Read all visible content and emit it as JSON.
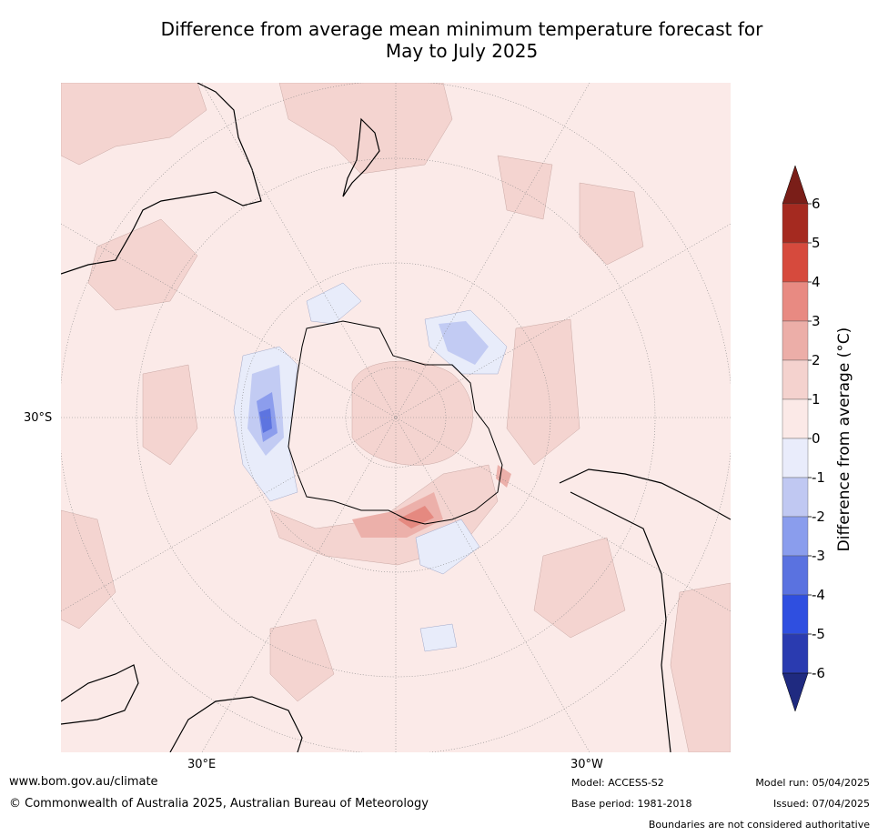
{
  "title_line1": "Difference from average mean minimum temperature forecast for",
  "title_line2": "May to July 2025",
  "map": {
    "lat_label": "30°S",
    "lon_label_east": "30°E",
    "lon_label_west": "30°W",
    "colors": {
      "land_outline": "#000000",
      "ocean_base": "#fbeae8",
      "warm_1_2": "#f4d4d0",
      "warm_2_3": "#ecb0aa",
      "warm_3_4": "#e58980",
      "warm_4_5": "#d94a40",
      "cool_0_1": "#e8ecfa",
      "cool_1_2": "#c2cbf3",
      "cool_2_3": "#8c9ded",
      "cool_3_4": "#5d74e0",
      "graticule": "#888888"
    }
  },
  "colorbar": {
    "label": "Difference from average (°C)",
    "ticks": [
      "6",
      "5",
      "4",
      "3",
      "2",
      "1",
      "0",
      "-1",
      "-2",
      "-3",
      "-4",
      "-5",
      "-6"
    ],
    "colors": [
      "#a52a20",
      "#d64a3d",
      "#e88a82",
      "#ecaea8",
      "#f4d2ce",
      "#fbe9e7",
      "#e9ecfb",
      "#c0c8f2",
      "#8a9ded",
      "#5a72e0",
      "#2f4fe0",
      "#2a3bb0"
    ],
    "top_arrow_color": "#7a1e18",
    "bottom_arrow_color": "#1f2a80"
  },
  "footer": {
    "url": "www.bom.gov.au/climate",
    "copyright": "© Commonwealth of Australia 2025, Australian Bureau of Meteorology",
    "model": "Model: ACCESS-S2",
    "base_period": "Base period: 1981-2018",
    "model_run": "Model run: 05/04/2025",
    "issued": "Issued: 07/04/2025",
    "disclaimer": "Boundaries are not considered authoritative"
  }
}
